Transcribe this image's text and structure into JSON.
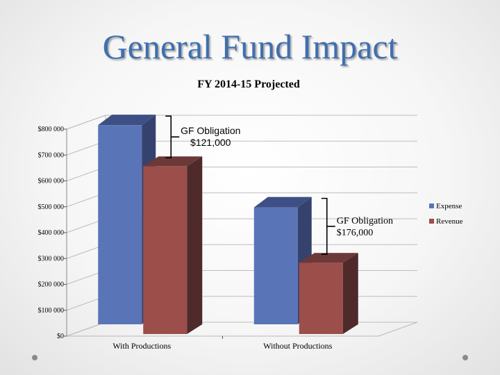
{
  "slide": {
    "title": "General Fund Impact",
    "colors": {
      "title": "#3f6fae"
    }
  },
  "chart_data": {
    "type": "bar",
    "title": "FY 2014-15 Projected",
    "xlabel": "",
    "ylabel": "",
    "categories": [
      "With Productions",
      "Without Productions"
    ],
    "series": [
      {
        "name": "Expense",
        "values": [
          770000,
          452000
        ],
        "color": "#5a74b8",
        "side_color": "#36426e",
        "top_color": "#3e4f85"
      },
      {
        "name": "Revenue",
        "values": [
          649000,
          276000
        ],
        "color": "#9c4e4b",
        "side_color": "#4f2a2a",
        "top_color": "#6c3838"
      }
    ],
    "ylim": [
      0,
      800000
    ],
    "yticks": [
      {
        "value": 0,
        "label": "$0"
      },
      {
        "value": 100000,
        "label": "$100 000"
      },
      {
        "value": 200000,
        "label": "$200 000"
      },
      {
        "value": 300000,
        "label": "$300 000"
      },
      {
        "value": 400000,
        "label": "$400 000"
      },
      {
        "value": 500000,
        "label": "$500 000"
      },
      {
        "value": 600000,
        "label": "$600 000"
      },
      {
        "value": 700000,
        "label": "$700 000"
      },
      {
        "value": 800000,
        "label": "$800 000"
      }
    ],
    "grid": true,
    "chart_style": "3d-clustered-column",
    "legend_position": "right",
    "annotations": [
      {
        "category": "With Productions",
        "lines": [
          "GF Obligation",
          "$121,000"
        ],
        "font": "sans"
      },
      {
        "category": "Without Productions",
        "lines": [
          "GF Obligation",
          "$176,000"
        ],
        "font": "serif"
      }
    ]
  }
}
